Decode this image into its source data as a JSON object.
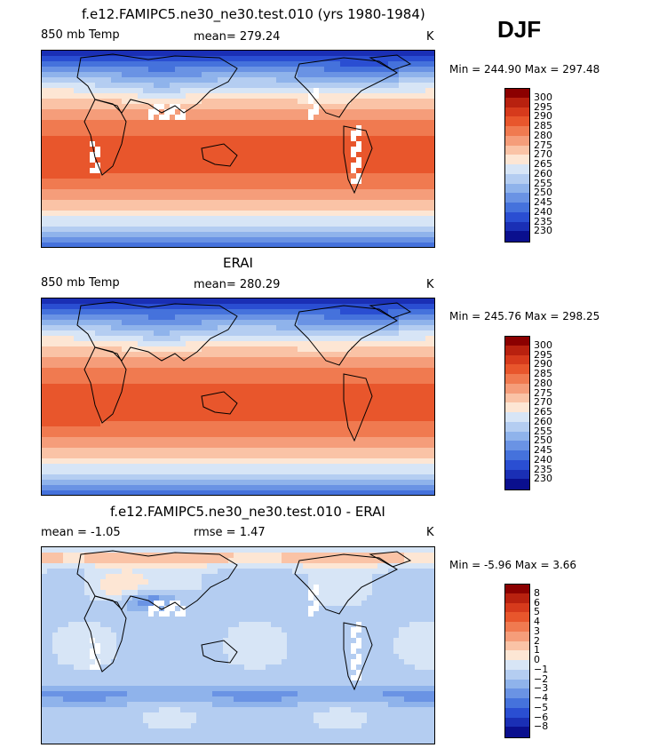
{
  "season": "DJF",
  "chart_data": [
    {
      "type": "heatmap",
      "title": "f.e12.FAMIPC5.ne30_ne30.test.010 (yrs 1980-1984)",
      "left_label": "850 mb Temp",
      "center_label": "mean= 279.24",
      "right_label": "K",
      "minmax": "Min = 244.90 Max = 297.48",
      "min": 244.9,
      "max": 297.48,
      "mean": 279.24,
      "colorbar": {
        "labels": [
          "300",
          "295",
          "290",
          "285",
          "280",
          "275",
          "270",
          "265",
          "260",
          "255",
          "250",
          "245",
          "240",
          "235",
          "230"
        ],
        "colors": [
          "#8b0000",
          "#b8210f",
          "#d63a1c",
          "#e8562c",
          "#f07a50",
          "#f59d7a",
          "#fac3a6",
          "#fde6d4",
          "#d7e5f6",
          "#b4cdf1",
          "#8fb3eb",
          "#6a93e4",
          "#4572dc",
          "#2a4ed2",
          "#1a2fb5",
          "#0a0f8e"
        ]
      },
      "missing_regions": true
    },
    {
      "type": "heatmap",
      "title": "ERAI",
      "left_label": "850 mb Temp",
      "center_label": "mean= 280.29",
      "right_label": "K",
      "minmax": "Min = 245.76 Max = 298.25",
      "min": 245.76,
      "max": 298.25,
      "mean": 280.29,
      "colorbar": {
        "labels": [
          "300",
          "295",
          "290",
          "285",
          "280",
          "275",
          "270",
          "265",
          "260",
          "255",
          "250",
          "245",
          "240",
          "235",
          "230"
        ],
        "colors": [
          "#8b0000",
          "#b8210f",
          "#d63a1c",
          "#e8562c",
          "#f07a50",
          "#f59d7a",
          "#fac3a6",
          "#fde6d4",
          "#d7e5f6",
          "#b4cdf1",
          "#8fb3eb",
          "#6a93e4",
          "#4572dc",
          "#2a4ed2",
          "#1a2fb5",
          "#0a0f8e"
        ]
      },
      "missing_regions": false
    },
    {
      "type": "heatmap",
      "title": "f.e12.FAMIPC5.ne30_ne30.test.010 - ERAI",
      "left_label": "mean =   -1.05",
      "center_label": "rmse =    1.47",
      "right_label": "K",
      "minmax": "Min =   -5.96 Max =    3.66",
      "min": -5.96,
      "max": 3.66,
      "mean": -1.05,
      "rmse": 1.47,
      "colorbar": {
        "labels": [
          "8",
          "6",
          "5",
          "4",
          "3",
          "2",
          "1",
          "0",
          "−1",
          "−2",
          "−3",
          "−4",
          "−5",
          "−6",
          "−8"
        ],
        "colors": [
          "#8b0000",
          "#b8210f",
          "#d63a1c",
          "#e8562c",
          "#f07a50",
          "#f59d7a",
          "#fac3a6",
          "#fde6d4",
          "#d7e5f6",
          "#b4cdf1",
          "#8fb3eb",
          "#6a93e4",
          "#4572dc",
          "#2a4ed2",
          "#1a2fb5",
          "#0a0f8e"
        ]
      },
      "missing_regions": true
    }
  ]
}
